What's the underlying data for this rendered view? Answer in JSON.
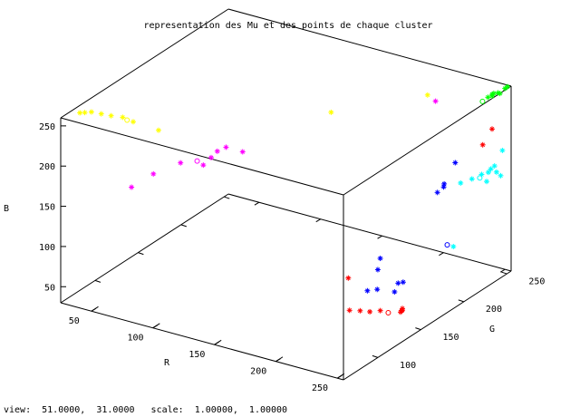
{
  "chart_data": {
    "type": "scatter",
    "title": "representation des Mu et des points de chaque cluster",
    "xlabel": "R",
    "ylabel": "G",
    "zlabel": "B",
    "xlim": [
      25,
      255
    ],
    "ylim": [
      60,
      255
    ],
    "zlim": [
      30,
      260
    ],
    "x_ticks": [
      "50",
      "100",
      "150",
      "200",
      "250"
    ],
    "y_ticks": [
      "100",
      "150",
      "200",
      "250"
    ],
    "z_ticks": [
      "50",
      "100",
      "150",
      "200",
      "250"
    ],
    "series": [
      {
        "color": "#ffff00",
        "points": [
          [
            28,
            78,
            255
          ],
          [
            32,
            78,
            257
          ],
          [
            36,
            80,
            258
          ],
          [
            44,
            80,
            259
          ],
          [
            52,
            80,
            260
          ],
          [
            60,
            82,
            260
          ],
          [
            70,
            80,
            260
          ],
          [
            92,
            78,
            260
          ],
          [
            175,
            160,
            260
          ],
          [
            215,
            215,
            260
          ]
        ],
        "mu": [
          [
            65,
            80,
            260
          ]
        ]
      },
      {
        "color": "#ff00ff",
        "points": [
          [
            70,
            78,
            180
          ],
          [
            85,
            82,
            200
          ],
          [
            105,
            85,
            220
          ],
          [
            120,
            90,
            220
          ],
          [
            125,
            92,
            230
          ],
          [
            130,
            92,
            240
          ],
          [
            135,
            95,
            245
          ],
          [
            145,
            100,
            240
          ],
          [
            225,
            210,
            260
          ]
        ],
        "mu": [
          [
            115,
            90,
            223
          ]
        ]
      },
      {
        "color": "#ff0000",
        "points": [
          [
            190,
            160,
            20
          ],
          [
            200,
            158,
            25
          ],
          [
            210,
            155,
            30
          ],
          [
            215,
            160,
            30
          ],
          [
            235,
            155,
            40
          ],
          [
            240,
            150,
            50
          ],
          [
            238,
            152,
            45
          ],
          [
            240,
            150,
            48
          ],
          [
            248,
            232,
            200
          ],
          [
            250,
            240,
            215
          ],
          [
            175,
            180,
            40
          ]
        ],
        "mu": [
          [
            225,
            155,
            35
          ]
        ]
      },
      {
        "color": "#0000ff",
        "points": [
          [
            230,
            135,
            80
          ],
          [
            240,
            145,
            85
          ],
          [
            242,
            148,
            85
          ],
          [
            235,
            148,
            70
          ],
          [
            222,
            135,
            75
          ],
          [
            215,
            160,
            95
          ],
          [
            248,
            200,
            200
          ],
          [
            232,
            210,
            160
          ],
          [
            230,
            205,
            152
          ],
          [
            233,
            208,
            158
          ],
          [
            220,
            150,
            90
          ]
        ],
        "mu": [
          [
            245,
            195,
            100
          ]
        ]
      },
      {
        "color": "#00ffff",
        "points": [
          [
            250,
            195,
            100
          ],
          [
            240,
            250,
            150
          ],
          [
            242,
            250,
            155
          ],
          [
            245,
            250,
            160
          ],
          [
            238,
            245,
            150
          ],
          [
            235,
            238,
            148
          ],
          [
            230,
            232,
            145
          ],
          [
            240,
            248,
            140
          ],
          [
            250,
            250,
            150
          ],
          [
            248,
            248,
            155
          ],
          [
            250,
            252,
            180
          ]
        ],
        "mu": [
          [
            240,
            240,
            150
          ]
        ]
      },
      {
        "color": "#00ff00",
        "points": [
          [
            248,
            238,
            255
          ],
          [
            250,
            240,
            258
          ],
          [
            250,
            242,
            258
          ],
          [
            252,
            244,
            258
          ],
          [
            250,
            240,
            256
          ],
          [
            248,
            252,
            250
          ],
          [
            250,
            255,
            255
          ],
          [
            252,
            255,
            258
          ]
        ],
        "mu": [
          [
            245,
            236,
            250
          ]
        ]
      }
    ]
  },
  "status_bar": "view:  51.0000,  31.0000   scale:  1.00000,  1.00000"
}
